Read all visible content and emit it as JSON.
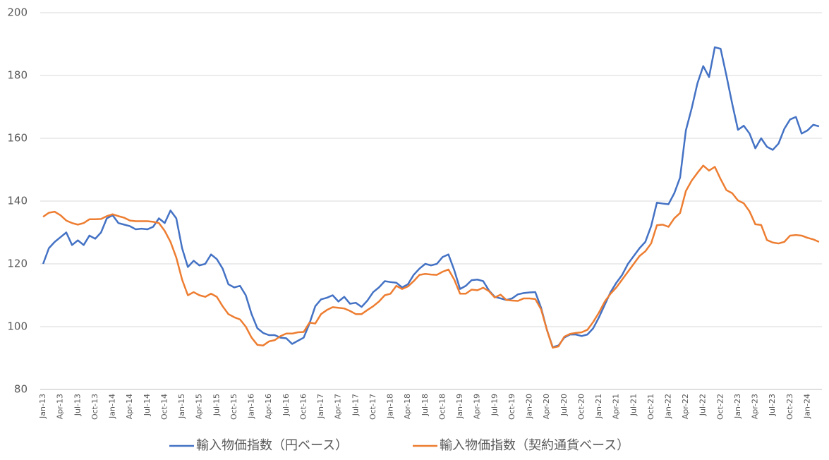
{
  "chart_data": {
    "type": "line",
    "categories": [
      "Jan-13",
      null,
      null,
      "Apr-13",
      null,
      null,
      "Jul-13",
      null,
      null,
      "Oct-13",
      null,
      null,
      "Jan-14",
      null,
      null,
      "Apr-14",
      null,
      null,
      "Jul-14",
      null,
      null,
      "Oct-14",
      null,
      null,
      "Jan-15",
      null,
      null,
      "Apr-15",
      null,
      null,
      "Jul-15",
      null,
      null,
      "Oct-15",
      null,
      null,
      "Jan-16",
      null,
      null,
      "Apr-16",
      null,
      null,
      "Jul-16",
      null,
      null,
      "Oct-16",
      null,
      null,
      "Jan-17",
      null,
      null,
      "Apr-17",
      null,
      null,
      "Jul-17",
      null,
      null,
      "Oct-17",
      null,
      null,
      "Jan-18",
      null,
      null,
      "Apr-18",
      null,
      null,
      "Jul-18",
      null,
      null,
      "Oct-18",
      null,
      null,
      "Jan-19",
      null,
      null,
      "Apr-19",
      null,
      null,
      "Jul-19",
      null,
      null,
      "Oct-19",
      null,
      null,
      "Jan-20",
      null,
      null,
      "Apr-20",
      null,
      null,
      "Jul-20",
      null,
      null,
      "Oct-20",
      null,
      null,
      "Jan-21",
      null,
      null,
      "Apr-21",
      null,
      null,
      "Jul-21",
      null,
      null,
      "Oct-21",
      null,
      null,
      "Jan-22",
      null,
      null,
      "Apr-22",
      null,
      null,
      "Jul-22",
      null,
      null,
      "Oct-22",
      null,
      null,
      "Jan-23",
      null,
      null,
      "Apr-23",
      null,
      null,
      "Jul-23",
      null,
      null,
      "Oct-23",
      null,
      null,
      "Jan-24",
      null,
      null
    ],
    "series": [
      {
        "name": "輸入物価指数（円ベース）",
        "color": "#4472c4",
        "values": [
          120,
          125,
          127,
          128.5,
          130,
          126,
          127.5,
          126,
          129,
          128,
          130,
          134.5,
          135.5,
          133,
          132.5,
          132,
          131,
          131.2,
          131,
          131.8,
          134.5,
          133,
          137,
          134.5,
          125,
          119,
          121,
          119.5,
          120,
          123,
          121.5,
          118.5,
          113.5,
          112.5,
          113,
          110,
          104,
          99.5,
          98,
          97.3,
          97.3,
          96.5,
          96.3,
          94.5,
          95.5,
          96.5,
          101,
          106.5,
          108.7,
          109.2,
          110,
          108,
          109.5,
          107.3,
          107.6,
          106.3,
          108.3,
          111,
          112.5,
          114.5,
          114.2,
          114,
          112.5,
          113.5,
          116.5,
          118.5,
          120,
          119.5,
          120,
          122.2,
          123,
          118,
          112,
          113,
          114.8,
          115,
          114.5,
          111.5,
          109.5,
          109,
          108.5,
          109,
          110.3,
          110.7,
          110.9,
          111,
          106,
          99,
          93.5,
          94,
          96.5,
          97.5,
          97.5,
          97,
          97.5,
          99.5,
          103,
          107,
          111,
          114,
          116.5,
          120,
          122.5,
          125,
          127,
          132,
          139.5,
          139.2,
          139,
          142.5,
          147.5,
          162.5,
          169.5,
          177.5,
          183,
          179.5,
          189,
          188.5,
          180,
          171,
          162.7,
          164,
          161.5,
          156.8,
          160,
          157.3,
          156.3,
          158.3,
          163,
          166,
          166.8,
          161.5,
          162.5,
          164.3,
          163.8
        ]
      },
      {
        "name": "輸入物価指数（契約通貨ベース）",
        "color": "#ed7d31",
        "values": [
          135,
          136.3,
          136.6,
          135.5,
          133.8,
          133,
          132.5,
          133,
          134.2,
          134.2,
          134.3,
          135.2,
          135.8,
          135.2,
          134.7,
          133.8,
          133.6,
          133.6,
          133.6,
          133.4,
          133,
          130.5,
          127,
          122,
          115,
          110,
          111,
          110,
          109.5,
          110.5,
          109.5,
          106.5,
          104,
          103,
          102.3,
          100,
          96.5,
          94.2,
          94,
          95.3,
          95.7,
          97,
          97.8,
          97.8,
          98.2,
          98.3,
          101.3,
          101,
          104,
          105.3,
          106.2,
          106,
          105.8,
          105,
          104,
          104,
          105.3,
          106.5,
          108,
          110,
          110.5,
          113,
          112,
          112.8,
          114.5,
          116.5,
          116.8,
          116.6,
          116.5,
          117.5,
          118.2,
          115,
          110.5,
          110.5,
          111.8,
          111.6,
          112.4,
          111.3,
          109.3,
          110.2,
          108.5,
          108.3,
          108.2,
          109,
          109,
          108.8,
          105.5,
          99,
          93.3,
          93.7,
          96.8,
          97.7,
          98,
          98.2,
          99,
          101.5,
          104.5,
          108,
          110.5,
          112.5,
          115,
          117.5,
          120,
          122.5,
          124,
          126.5,
          132.3,
          132.5,
          131.8,
          134.5,
          136.2,
          143.2,
          146.5,
          149,
          151.3,
          149.7,
          150.9,
          147,
          143.5,
          142.5,
          140.2,
          139.3,
          136.7,
          132.6,
          132.4,
          127.6,
          126.8,
          126.5,
          127,
          129,
          129.2,
          129,
          128.3,
          127.8,
          127
        ]
      }
    ],
    "ylim": [
      80,
      200
    ],
    "yticks": [
      80,
      100,
      120,
      140,
      160,
      180,
      200
    ],
    "grid": true
  }
}
